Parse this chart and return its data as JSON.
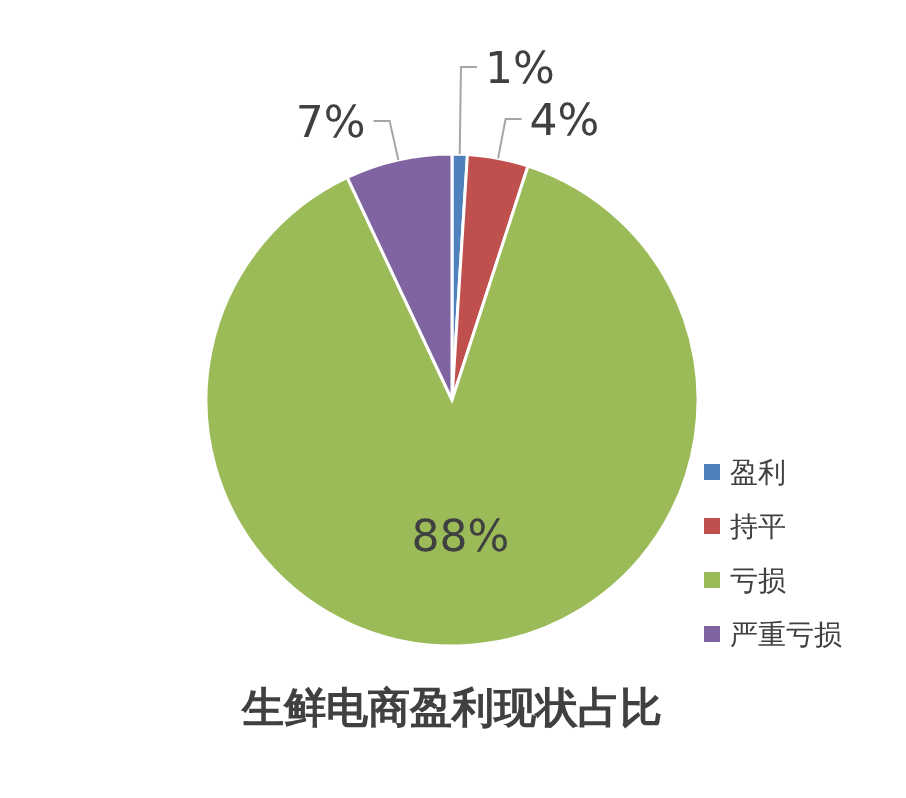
{
  "chart_data": {
    "type": "pie",
    "title": "生鲜电商盈利现状占比",
    "categories": [
      "盈利",
      "持平",
      "亏损",
      "严重亏损"
    ],
    "values": [
      1,
      4,
      88,
      7
    ],
    "colors": [
      "#4f81bd",
      "#c0504d",
      "#9bbb59",
      "#8064a2"
    ],
    "value_labels": [
      "1%",
      "4%",
      "88%",
      "7%"
    ],
    "legend": "bottom right"
  }
}
